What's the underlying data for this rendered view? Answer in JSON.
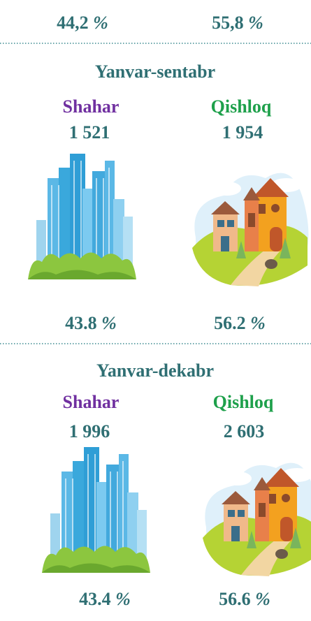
{
  "top_shares": {
    "urban": "44,2",
    "rural": "55,8"
  },
  "unit": "%",
  "sections": [
    {
      "period": "Yanvar-sentabr",
      "urban_label": "Shahar",
      "rural_label": "Qishloq",
      "urban_count": "1 521",
      "rural_count": "1 954",
      "urban_share": "43.8",
      "rural_share": "56.2"
    },
    {
      "period": "Yanvar-dekabr",
      "urban_label": "Shahar",
      "rural_label": "Qishloq",
      "urban_count": "1 996",
      "rural_count": "2 603",
      "urban_share": "43.4",
      "rural_share": "56.6"
    }
  ]
}
